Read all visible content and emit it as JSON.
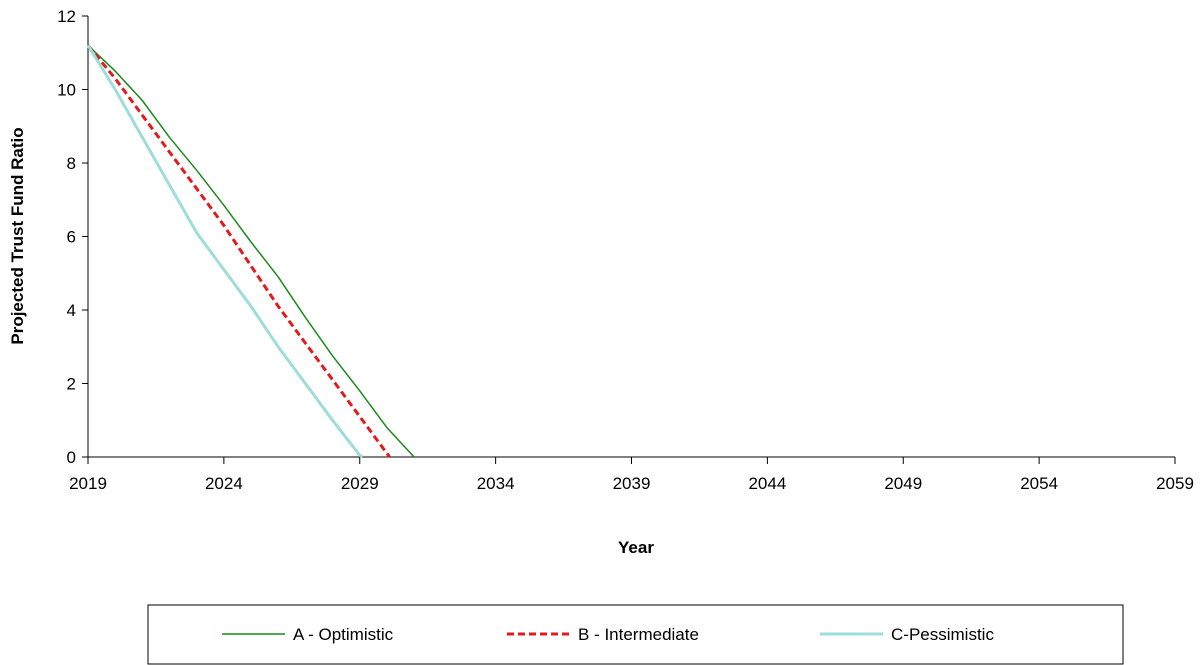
{
  "chart_data": {
    "type": "line",
    "xlabel": "Year",
    "ylabel": "Projected Trust Fund Ratio",
    "xlim": [
      2019,
      2059
    ],
    "ylim": [
      0,
      12
    ],
    "xticks": [
      "2019",
      "2024",
      "2029",
      "2034",
      "2039",
      "2044",
      "2049",
      "2054",
      "2059"
    ],
    "yticks": [
      "0",
      "2",
      "4",
      "6",
      "8",
      "10",
      "12"
    ],
    "legend_position": "bottom",
    "grid": false,
    "series": [
      {
        "name": "A - Optimistic",
        "color": "#1a8a1a",
        "style": "solid",
        "x": [
          2019,
          2020,
          2021,
          2022,
          2023,
          2024,
          2025,
          2026,
          2027,
          2028,
          2029,
          2030,
          2031
        ],
        "y": [
          11.2,
          10.5,
          9.7,
          8.7,
          7.8,
          6.85,
          5.85,
          4.9,
          3.8,
          2.75,
          1.8,
          0.8,
          0
        ]
      },
      {
        "name": "B - Intermediate",
        "color": "#e31a1c",
        "style": "dashed",
        "x": [
          2019,
          2020,
          2021,
          2022,
          2023,
          2024,
          2025,
          2026,
          2027,
          2028,
          2029,
          2030,
          2030.1
        ],
        "y": [
          11.2,
          10.3,
          9.3,
          8.3,
          7.3,
          6.3,
          5.2,
          4.1,
          3.1,
          2.1,
          1.1,
          0.1,
          0
        ]
      },
      {
        "name": "C-Pessimistic",
        "color": "#9fdcdc",
        "style": "solid",
        "x": [
          2019,
          2020,
          2021,
          2022,
          2023,
          2024,
          2025,
          2026,
          2027,
          2028,
          2029,
          2029.1
        ],
        "y": [
          11.2,
          10.0,
          8.7,
          7.4,
          6.1,
          5.1,
          4.1,
          3.0,
          2.0,
          1.0,
          0.05,
          0
        ]
      }
    ]
  }
}
